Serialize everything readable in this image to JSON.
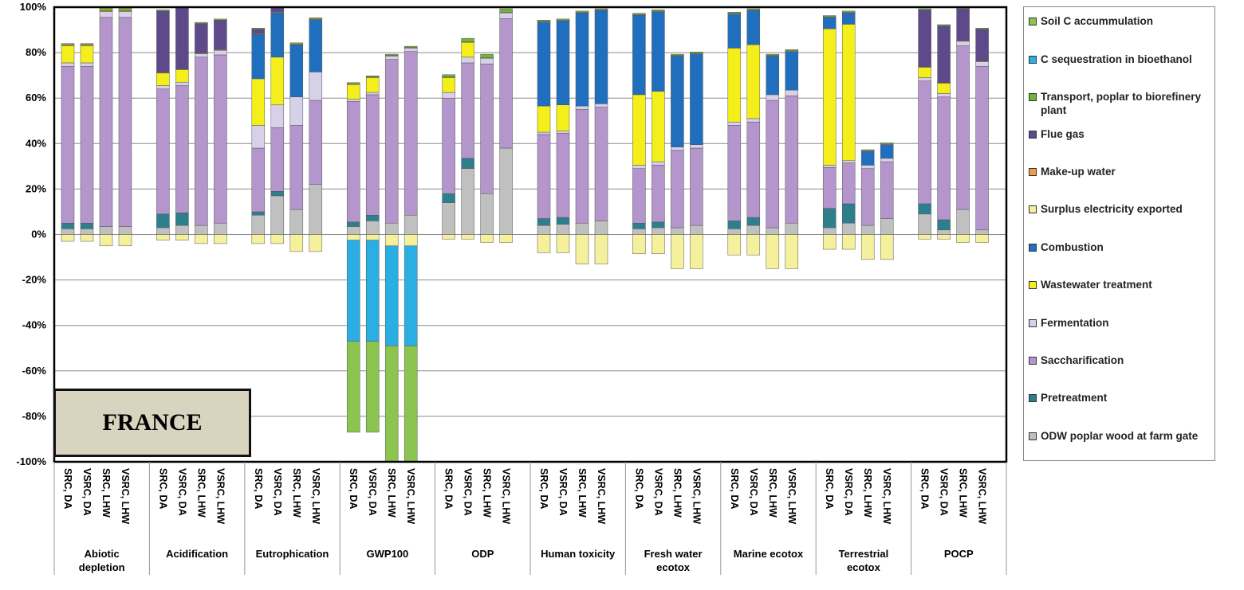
{
  "chart_data": {
    "type": "bar",
    "stacked": true,
    "title": "",
    "region_label": "FRANCE",
    "ylim": [
      -100,
      100
    ],
    "ytick_values": [
      -100,
      -80,
      -60,
      -40,
      -20,
      0,
      20,
      40,
      60,
      80,
      100
    ],
    "ytick_labels": [
      "-100%",
      "-80%",
      "-60%",
      "-40%",
      "-20%",
      "0%",
      "20%",
      "40%",
      "60%",
      "80%",
      "100%"
    ],
    "groups": [
      "Abiotic depletion",
      "Acidification",
      "Eutrophication",
      "GWP100",
      "ODP",
      "Human toxicity",
      "Fresh water ecotox",
      "Marine ecotox",
      "Terrestrial ecotox",
      "POCP"
    ],
    "group_label_lines": [
      [
        "Abiotic",
        "depletion"
      ],
      [
        "Acidification"
      ],
      [
        "Eutrophication"
      ],
      [
        "GWP100"
      ],
      [
        "ODP"
      ],
      [
        "Human toxicity"
      ],
      [
        "Fresh water",
        "ecotox"
      ],
      [
        "Marine ecotox"
      ],
      [
        "Terrestrial",
        "ecotox"
      ],
      [
        "POCP"
      ]
    ],
    "scenarios": [
      "SRC, DA",
      "VSRC, DA",
      "SRC, LHW",
      "VSRC, LHW"
    ],
    "legend_order": [
      "Soil C accummulation",
      "C sequestration in bioethanol",
      "Transport, poplar to biorefinery plant",
      "Flue gas",
      "Make-up water",
      "Surplus electricity exported",
      "Combustion",
      "Wastewater treatment",
      "Fermentation",
      "Saccharification",
      "Pretreatment",
      "ODW poplar wood at farm gate"
    ],
    "series": [
      {
        "name": "ODW poplar wood at farm gate",
        "color": "#c0c0c0",
        "values": [
          [
            2.5,
            2.5,
            3.5,
            3.5
          ],
          [
            3,
            4,
            4,
            5
          ],
          [
            8.5,
            17,
            11,
            22
          ],
          [
            3.5,
            6,
            5,
            8.5
          ],
          [
            14,
            29,
            18,
            38
          ],
          [
            4,
            4.5,
            5,
            6
          ],
          [
            2.5,
            3,
            3,
            4
          ],
          [
            2.5,
            4,
            3,
            5
          ],
          [
            3,
            5,
            4,
            7
          ],
          [
            9,
            2,
            11,
            2
          ]
        ]
      },
      {
        "name": "Pretreatment",
        "color": "#2e7f8c",
        "values": [
          [
            2.5,
            2.5,
            0,
            0
          ],
          [
            6,
            5.5,
            0,
            0
          ],
          [
            1.5,
            2,
            0,
            0
          ],
          [
            2,
            2.5,
            0,
            0
          ],
          [
            4,
            4.5,
            0,
            0
          ],
          [
            3,
            3,
            0,
            0
          ],
          [
            2.5,
            2.5,
            0,
            0
          ],
          [
            3.5,
            3.5,
            0,
            0
          ],
          [
            8.5,
            8.5,
            0,
            0
          ],
          [
            4.5,
            4.5,
            0,
            0
          ]
        ]
      },
      {
        "name": "Saccharification",
        "color": "#b496cc",
        "values": [
          [
            69,
            69,
            92,
            92
          ],
          [
            55,
            56,
            74,
            74
          ],
          [
            28,
            28,
            37,
            37
          ],
          [
            53,
            53,
            72,
            72
          ],
          [
            42,
            42,
            57,
            57
          ],
          [
            37,
            37,
            50,
            50
          ],
          [
            24,
            25,
            34,
            34
          ],
          [
            42,
            42,
            56,
            56
          ],
          [
            18,
            18,
            25,
            25
          ],
          [
            54,
            54,
            72,
            72
          ]
        ]
      },
      {
        "name": "Fermentation",
        "color": "#d6d0e8",
        "values": [
          [
            1.5,
            1.5,
            2.5,
            2.5
          ],
          [
            1.5,
            1.5,
            1.5,
            2
          ],
          [
            10,
            10,
            12.5,
            12.5
          ],
          [
            1,
            1,
            1.5,
            1.5
          ],
          [
            2.5,
            2.5,
            2.5,
            2.5
          ],
          [
            1,
            1,
            1.5,
            1.5
          ],
          [
            1.5,
            1.5,
            1.5,
            1.5
          ],
          [
            1.5,
            1.5,
            2.5,
            2.5
          ],
          [
            1,
            1,
            1.5,
            1.5
          ],
          [
            1.5,
            1.5,
            2,
            2
          ]
        ]
      },
      {
        "name": "Wastewater treatment",
        "color": "#f4ef1a",
        "values": [
          [
            7.5,
            7.5,
            0,
            0
          ],
          [
            5.5,
            5.5,
            0,
            0
          ],
          [
            20.5,
            21,
            0,
            0
          ],
          [
            6.5,
            6.5,
            0,
            0
          ],
          [
            6.5,
            6.5,
            0,
            0
          ],
          [
            11.5,
            11.5,
            0,
            0
          ],
          [
            31,
            31,
            0,
            0
          ],
          [
            32.5,
            32.5,
            0,
            0
          ],
          [
            60,
            60,
            0,
            0
          ],
          [
            4.5,
            4.5,
            0,
            0
          ]
        ]
      },
      {
        "name": "Combustion",
        "color": "#1f6fbe",
        "values": [
          [
            0,
            0,
            0,
            0
          ],
          [
            0,
            0,
            0,
            0
          ],
          [
            19.5,
            19.5,
            23,
            23
          ],
          [
            0,
            0,
            0,
            0
          ],
          [
            0,
            0,
            0,
            0
          ],
          [
            37,
            37,
            41,
            41
          ],
          [
            35,
            35,
            40,
            40
          ],
          [
            15,
            15,
            17,
            17
          ],
          [
            5,
            5,
            6,
            6
          ],
          [
            0,
            0,
            0,
            0
          ]
        ]
      },
      {
        "name": "Surplus electricity exported",
        "color": "#f5f09c",
        "values": [
          [
            -3,
            -3,
            -5,
            -5
          ],
          [
            -2.5,
            -2.5,
            -4,
            -4
          ],
          [
            -4,
            -4,
            -7.5,
            -7.5
          ],
          [
            -2.5,
            -2.5,
            -5,
            -5
          ],
          [
            -2,
            -2,
            -3.5,
            -3.5
          ],
          [
            -8,
            -8,
            -13,
            -13
          ],
          [
            -8.5,
            -8.5,
            -15,
            -15
          ],
          [
            -9,
            -9,
            -15,
            -15
          ],
          [
            -6.5,
            -6.5,
            -11,
            -11
          ],
          [
            -2,
            -2,
            -3.5,
            -3.5
          ]
        ]
      },
      {
        "name": "Make-up water",
        "color": "#f39a4a",
        "values": [
          [
            0.5,
            0.5,
            0.5,
            0.5
          ],
          [
            0.3,
            0.3,
            0.3,
            0.3
          ],
          [
            0.3,
            0.3,
            0.3,
            0.3
          ],
          [
            0.3,
            0.3,
            0.3,
            0.3
          ],
          [
            0.3,
            0.3,
            0.3,
            0.3
          ],
          [
            0.3,
            0.3,
            0.3,
            0.3
          ],
          [
            0.3,
            0.3,
            0.3,
            0.3
          ],
          [
            0.3,
            0.3,
            0.3,
            0.3
          ],
          [
            0.3,
            0.3,
            0.3,
            0.3
          ],
          [
            0.3,
            0.3,
            0.3,
            0.3
          ]
        ]
      },
      {
        "name": "Flue gas",
        "color": "#5e4a8a",
        "values": [
          [
            0,
            0,
            0,
            0
          ],
          [
            27,
            27,
            13,
            13
          ],
          [
            2,
            2,
            0,
            0
          ],
          [
            0,
            0,
            0,
            0
          ],
          [
            0,
            0,
            0,
            0
          ],
          [
            0,
            0,
            0,
            0
          ],
          [
            0,
            0,
            0,
            0
          ],
          [
            0,
            0,
            0,
            0
          ],
          [
            0,
            0,
            0,
            0
          ],
          [
            25,
            25,
            14,
            14
          ]
        ]
      },
      {
        "name": "Transport, poplar to biorefinery plant",
        "color": "#6fb43c",
        "values": [
          [
            0.5,
            0.5,
            1.5,
            1.5
          ],
          [
            0.5,
            0.5,
            0.5,
            0.5
          ],
          [
            0.5,
            0.5,
            0.5,
            0.5
          ],
          [
            0.5,
            0.5,
            0.5,
            0.5
          ],
          [
            1,
            1.5,
            1.5,
            1.5
          ],
          [
            0.5,
            0.5,
            0.5,
            0.5
          ],
          [
            0.5,
            0.5,
            0.5,
            0.5
          ],
          [
            0.5,
            0.5,
            0.5,
            0.5
          ],
          [
            0.5,
            0.5,
            0.5,
            0.5
          ],
          [
            0.5,
            0.5,
            0.5,
            0.5
          ]
        ]
      },
      {
        "name": "C sequestration in bioethanol",
        "color": "#2aaee3",
        "values": [
          [
            0,
            0,
            0,
            0
          ],
          [
            0,
            0,
            0,
            0
          ],
          [
            0,
            0,
            0,
            0
          ],
          [
            -44.5,
            -44.5,
            -44,
            -44
          ],
          [
            0,
            0,
            0,
            0
          ],
          [
            0,
            0,
            0,
            0
          ],
          [
            0,
            0,
            0,
            0
          ],
          [
            0,
            0,
            0,
            0
          ],
          [
            0,
            0,
            0,
            0
          ],
          [
            0,
            0,
            0,
            0
          ]
        ]
      },
      {
        "name": "Soil C accummulation",
        "color": "#8cc450",
        "values": [
          [
            0,
            0,
            0,
            0
          ],
          [
            0,
            0,
            0,
            0
          ],
          [
            0,
            0,
            0,
            0
          ],
          [
            -40,
            -40,
            -51,
            -51
          ],
          [
            0,
            0,
            0,
            0
          ],
          [
            0,
            0,
            0,
            0
          ],
          [
            0,
            0,
            0,
            0
          ],
          [
            0,
            0,
            0,
            0
          ],
          [
            0,
            0,
            0,
            0
          ],
          [
            0,
            0,
            0,
            0
          ]
        ]
      }
    ]
  }
}
